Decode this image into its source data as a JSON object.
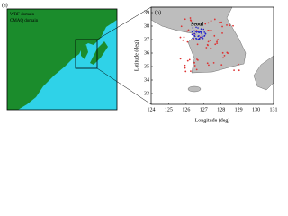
{
  "panel_a": {
    "label": "(a)",
    "outer_domain": "WRF domain",
    "inner_domain": "CMAQ domain"
  },
  "panel_b": {
    "label": "(b)",
    "city": "Seoul",
    "ylabel": "Latitude (deg)",
    "xlabel": "Longitude (deg)",
    "xlim": [
      124,
      131
    ],
    "xticks": [
      124,
      125,
      126,
      127,
      128,
      129,
      130,
      131
    ],
    "ylim": [
      32.2,
      39.4
    ],
    "yticks": [
      33,
      34,
      35,
      36,
      37,
      38,
      39
    ]
  }
}
